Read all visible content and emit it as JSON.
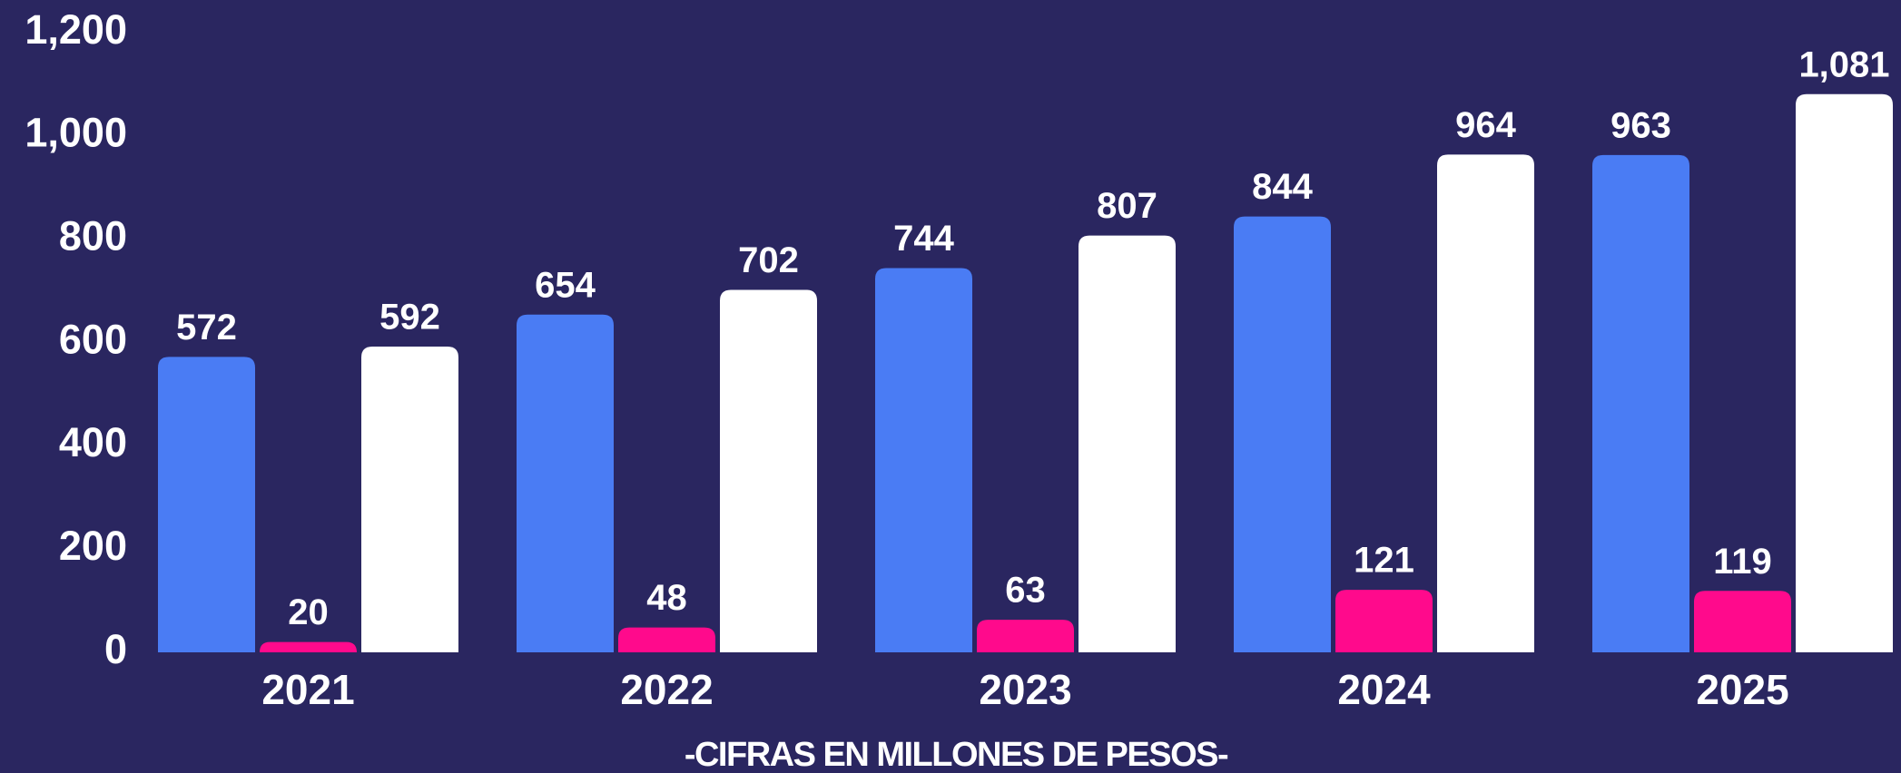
{
  "chart_data": {
    "type": "bar",
    "subtitle": "-CIFRAS EN MILLONES DE PESOS-",
    "categories": [
      "2021",
      "2022",
      "2023",
      "2024",
      "2025"
    ],
    "series": [
      {
        "color": "#4a7cf4",
        "values": [
          572,
          654,
          744,
          844,
          963
        ]
      },
      {
        "color": "#ff0a8c",
        "values": [
          20,
          48,
          63,
          121,
          119
        ]
      },
      {
        "color": "#ffffff",
        "values": [
          592,
          702,
          807,
          964,
          1081
        ],
        "value_labels": [
          "592",
          "702",
          "807",
          "964",
          "1,081"
        ]
      }
    ],
    "ylim": [
      0,
      1200
    ],
    "yticks": [
      0,
      200,
      400,
      600,
      800,
      {
        "value": 1000,
        "label": "1,000"
      },
      {
        "value": 1200,
        "label": "1,200"
      }
    ],
    "grid": false
  }
}
